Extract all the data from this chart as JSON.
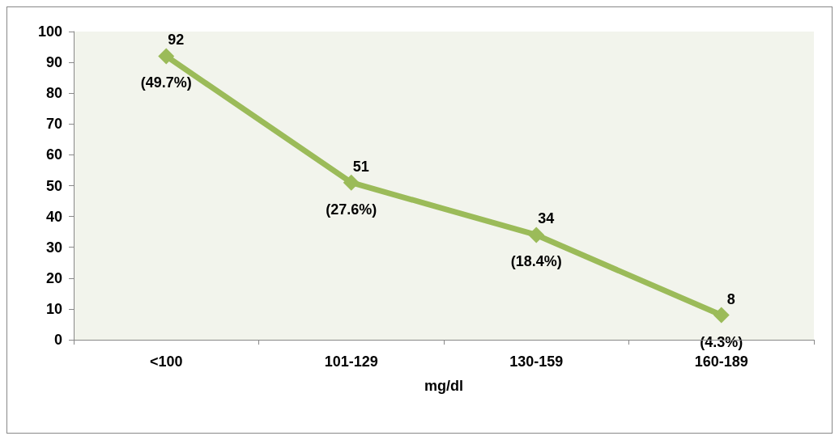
{
  "chart_data": {
    "type": "line",
    "xlabel": "mg/dl",
    "categories": [
      "<100",
      "101-129",
      "130-159",
      "160-189"
    ],
    "series": [
      {
        "color": "#9bbb59",
        "values": [
          92,
          51,
          34,
          8
        ]
      }
    ],
    "ylim": [
      0,
      100
    ],
    "yticks": [
      0,
      10,
      20,
      30,
      40,
      50,
      60,
      70,
      80,
      90,
      100
    ],
    "grid": false,
    "marker": "diamond",
    "line_style": "solid",
    "data_labels": true,
    "annotations": [
      {
        "text": "(49.7%)",
        "x": "<100",
        "y": 92
      },
      {
        "text": "(27.6%)",
        "x": "101-129",
        "y": 51
      },
      {
        "text": "(18.4%)",
        "x": "130-159",
        "y": 34
      },
      {
        "text": "(4.3%)",
        "x": "160-189",
        "y": 8
      }
    ]
  }
}
